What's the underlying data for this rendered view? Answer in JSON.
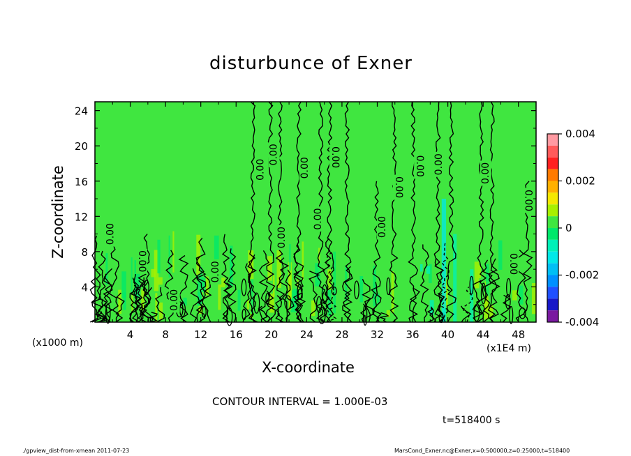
{
  "chart_data": {
    "type": "heatmap",
    "title": "disturbunce of Exner",
    "xlabel": "X-coordinate",
    "ylabel": "Z-coordinate",
    "x_unit_label": "(x1E4 m)",
    "y_unit_label": "(x1000 m)",
    "xlim": [
      0,
      50
    ],
    "ylim": [
      0,
      25
    ],
    "x_ticks": [
      "4",
      "8",
      "12",
      "16",
      "20",
      "24",
      "28",
      "32",
      "36",
      "40",
      "44",
      "48"
    ],
    "y_ticks": [
      "4",
      "8",
      "12",
      "16",
      "20",
      "24"
    ],
    "colorbar": {
      "range": [
        -0.004,
        0.004
      ],
      "tick_labels": [
        "0.004",
        "0.002",
        "0",
        "-0.002",
        "-0.004"
      ],
      "tick_values": [
        0.004,
        0.002,
        0,
        -0.002,
        -0.004
      ],
      "levels": [
        {
          "from": 0.0035,
          "to": 0.004,
          "color": "#ff9aa2"
        },
        {
          "from": 0.003,
          "to": 0.0035,
          "color": "#ff5a5a"
        },
        {
          "from": 0.0025,
          "to": 0.003,
          "color": "#ff2020"
        },
        {
          "from": 0.002,
          "to": 0.0025,
          "color": "#ff7a00"
        },
        {
          "from": 0.0015,
          "to": 0.002,
          "color": "#ffb000"
        },
        {
          "from": 0.001,
          "to": 0.0015,
          "color": "#f4e800"
        },
        {
          "from": 0.0005,
          "to": 0.001,
          "color": "#a8f000"
        },
        {
          "from": 0.0,
          "to": 0.0005,
          "color": "#40e640"
        },
        {
          "from": -0.0005,
          "to": 0.0,
          "color": "#00e86a"
        },
        {
          "from": -0.001,
          "to": -0.0005,
          "color": "#00f0b8"
        },
        {
          "from": -0.0015,
          "to": -0.001,
          "color": "#00e8e8"
        },
        {
          "from": -0.002,
          "to": -0.0015,
          "color": "#00bff4"
        },
        {
          "from": -0.0025,
          "to": -0.002,
          "color": "#0090ff"
        },
        {
          "from": -0.003,
          "to": -0.0025,
          "color": "#2050ff"
        },
        {
          "from": -0.0035,
          "to": -0.003,
          "color": "#1818c8"
        },
        {
          "from": -0.004,
          "to": -0.0035,
          "color": "#7a1aa0"
        }
      ]
    },
    "background_value": 0.0002,
    "contour_interval_label": "CONTOUR INTERVAL = 1.000E-03",
    "contour_label": "0.00",
    "contour_labels": [
      {
        "x": 1.8,
        "z": 10.0,
        "rot": -90
      },
      {
        "x": 5.3,
        "z": 6.9,
        "rot": 90
      },
      {
        "x": 9.0,
        "z": 2.5,
        "rot": -90
      },
      {
        "x": 13.7,
        "z": 5.7,
        "rot": -90
      },
      {
        "x": 18.8,
        "z": 17.3,
        "rot": -90
      },
      {
        "x": 20.3,
        "z": 19.0,
        "rot": -90
      },
      {
        "x": 21.2,
        "z": 9.6,
        "rot": -90
      },
      {
        "x": 23.8,
        "z": 17.5,
        "rot": -90
      },
      {
        "x": 25.3,
        "z": 11.7,
        "rot": -90
      },
      {
        "x": 27.2,
        "z": 18.7,
        "rot": 90
      },
      {
        "x": 32.6,
        "z": 10.8,
        "rot": -90
      },
      {
        "x": 34.4,
        "z": 15.3,
        "rot": 90
      },
      {
        "x": 36.8,
        "z": 17.7,
        "rot": 90
      },
      {
        "x": 39.0,
        "z": 17.9,
        "rot": -90
      },
      {
        "x": 44.3,
        "z": 16.9,
        "rot": -90
      },
      {
        "x": 47.4,
        "z": 6.6,
        "rot": 90
      },
      {
        "x": 49.1,
        "z": 13.8,
        "rot": 90
      }
    ],
    "time_label": "t=518400 s",
    "footer_left": "./gpview_dist-from-xmean  2011-07-23",
    "footer_right": "MarsCond_Exner.nc@Exner,x=0:500000,z=0:25000,t=518400"
  }
}
